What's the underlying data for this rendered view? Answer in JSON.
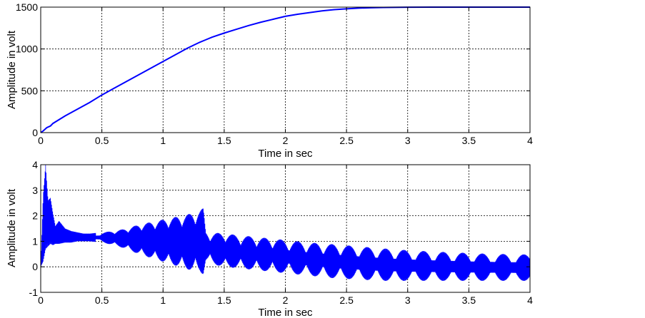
{
  "chart_data": [
    {
      "type": "line",
      "title": "",
      "xlabel": "Time in sec",
      "ylabel": "Amplitude in volt",
      "xlim": [
        0,
        4
      ],
      "ylim": [
        0,
        1500
      ],
      "xticks": [
        "0",
        "0.5",
        "1",
        "1.5",
        "2",
        "2.5",
        "3",
        "3.5",
        "4"
      ],
      "yticks": [
        "0",
        "500",
        "1000",
        "1500"
      ],
      "grid": true,
      "color": "#0000ff",
      "series": [
        {
          "x": [
            0,
            0.02,
            0.05,
            0.08,
            0.1,
            0.2,
            0.3,
            0.4,
            0.5,
            0.6,
            0.7,
            0.8,
            0.9,
            1.0,
            1.1,
            1.2,
            1.3,
            1.35,
            1.4,
            1.5,
            1.6,
            1.7,
            1.8,
            1.9,
            2.0,
            2.1,
            2.2,
            2.3,
            2.4,
            2.5,
            2.6,
            2.7,
            2.8,
            3.0,
            3.2,
            3.4,
            3.6,
            3.8,
            4.0
          ],
          "y": [
            0,
            20,
            60,
            80,
            110,
            200,
            280,
            360,
            450,
            530,
            610,
            690,
            770,
            850,
            930,
            1010,
            1080,
            1110,
            1140,
            1190,
            1235,
            1280,
            1320,
            1355,
            1390,
            1415,
            1435,
            1455,
            1470,
            1480,
            1488,
            1493,
            1496,
            1499,
            1500,
            1500,
            1500,
            1500,
            1500
          ]
        }
      ]
    },
    {
      "type": "line",
      "title": "",
      "xlabel": "Time in sec",
      "ylabel": "Amplitude in volt",
      "xlim": [
        0,
        4
      ],
      "ylim": [
        -1,
        4
      ],
      "xticks": [
        "0",
        "0.5",
        "1",
        "1.5",
        "2",
        "2.5",
        "3",
        "3.5",
        "4"
      ],
      "yticks": [
        "-1",
        "0",
        "1",
        "2",
        "3",
        "4"
      ],
      "grid": true,
      "color": "#0000ff",
      "series": [
        {
          "upper": {
            "x": [
              0,
              0.02,
              0.04,
              0.06,
              0.08,
              0.1,
              0.12,
              0.15,
              0.2,
              0.25,
              0.3,
              0.35,
              0.4,
              0.5,
              0.6,
              0.7,
              0.8,
              0.9,
              1.0,
              1.1,
              1.2,
              1.3,
              1.33,
              1.35,
              1.4,
              1.5,
              1.6,
              1.8,
              2.0,
              2.2,
              2.4,
              2.6,
              2.8,
              3.0,
              3.2,
              3.4,
              3.6,
              3.8,
              4.0
            ],
            "y": [
              0,
              2.8,
              4.0,
              2.6,
              2.7,
              2.1,
              1.6,
              1.8,
              1.5,
              1.4,
              1.35,
              1.3,
              1.3,
              1.35,
              1.4,
              1.5,
              1.65,
              1.75,
              1.85,
              1.95,
              2.05,
              2.2,
              2.3,
              1.4,
              1.35,
              1.3,
              1.25,
              1.15,
              1.05,
              0.95,
              0.88,
              0.8,
              0.72,
              0.65,
              0.6,
              0.56,
              0.52,
              0.5,
              0.48
            ]
          },
          "lower": {
            "x": [
              0,
              0.02,
              0.04,
              0.06,
              0.08,
              0.1,
              0.12,
              0.15,
              0.2,
              0.25,
              0.3,
              0.35,
              0.4,
              0.5,
              0.6,
              0.7,
              0.8,
              0.9,
              1.0,
              1.1,
              1.2,
              1.3,
              1.33,
              1.35,
              1.4,
              1.5,
              1.6,
              1.8,
              2.0,
              2.2,
              2.4,
              2.6,
              2.8,
              3.0,
              3.2,
              3.4,
              3.6,
              3.8,
              4.0
            ],
            "y": [
              0,
              0.2,
              0.7,
              0.8,
              0.9,
              0.85,
              0.9,
              0.9,
              0.95,
              0.95,
              1.0,
              1.0,
              1.0,
              0.95,
              0.85,
              0.7,
              0.5,
              0.35,
              0.2,
              0.05,
              -0.1,
              -0.2,
              -0.3,
              0.2,
              0.1,
              0.0,
              -0.05,
              -0.15,
              -0.25,
              -0.35,
              -0.45,
              -0.5,
              -0.55,
              -0.55,
              -0.55,
              -0.55,
              -0.55,
              -0.55,
              -0.55
            ]
          },
          "peak_centers_x": [
            0.55,
            0.66,
            0.77,
            0.88,
            0.99,
            1.1,
            1.21,
            1.32,
            1.45,
            1.57,
            1.7,
            1.83,
            1.96,
            2.1,
            2.24,
            2.38,
            2.52,
            2.67,
            2.82,
            2.97,
            3.13,
            3.29,
            3.45,
            3.61,
            3.78,
            3.95
          ]
        }
      ]
    }
  ]
}
